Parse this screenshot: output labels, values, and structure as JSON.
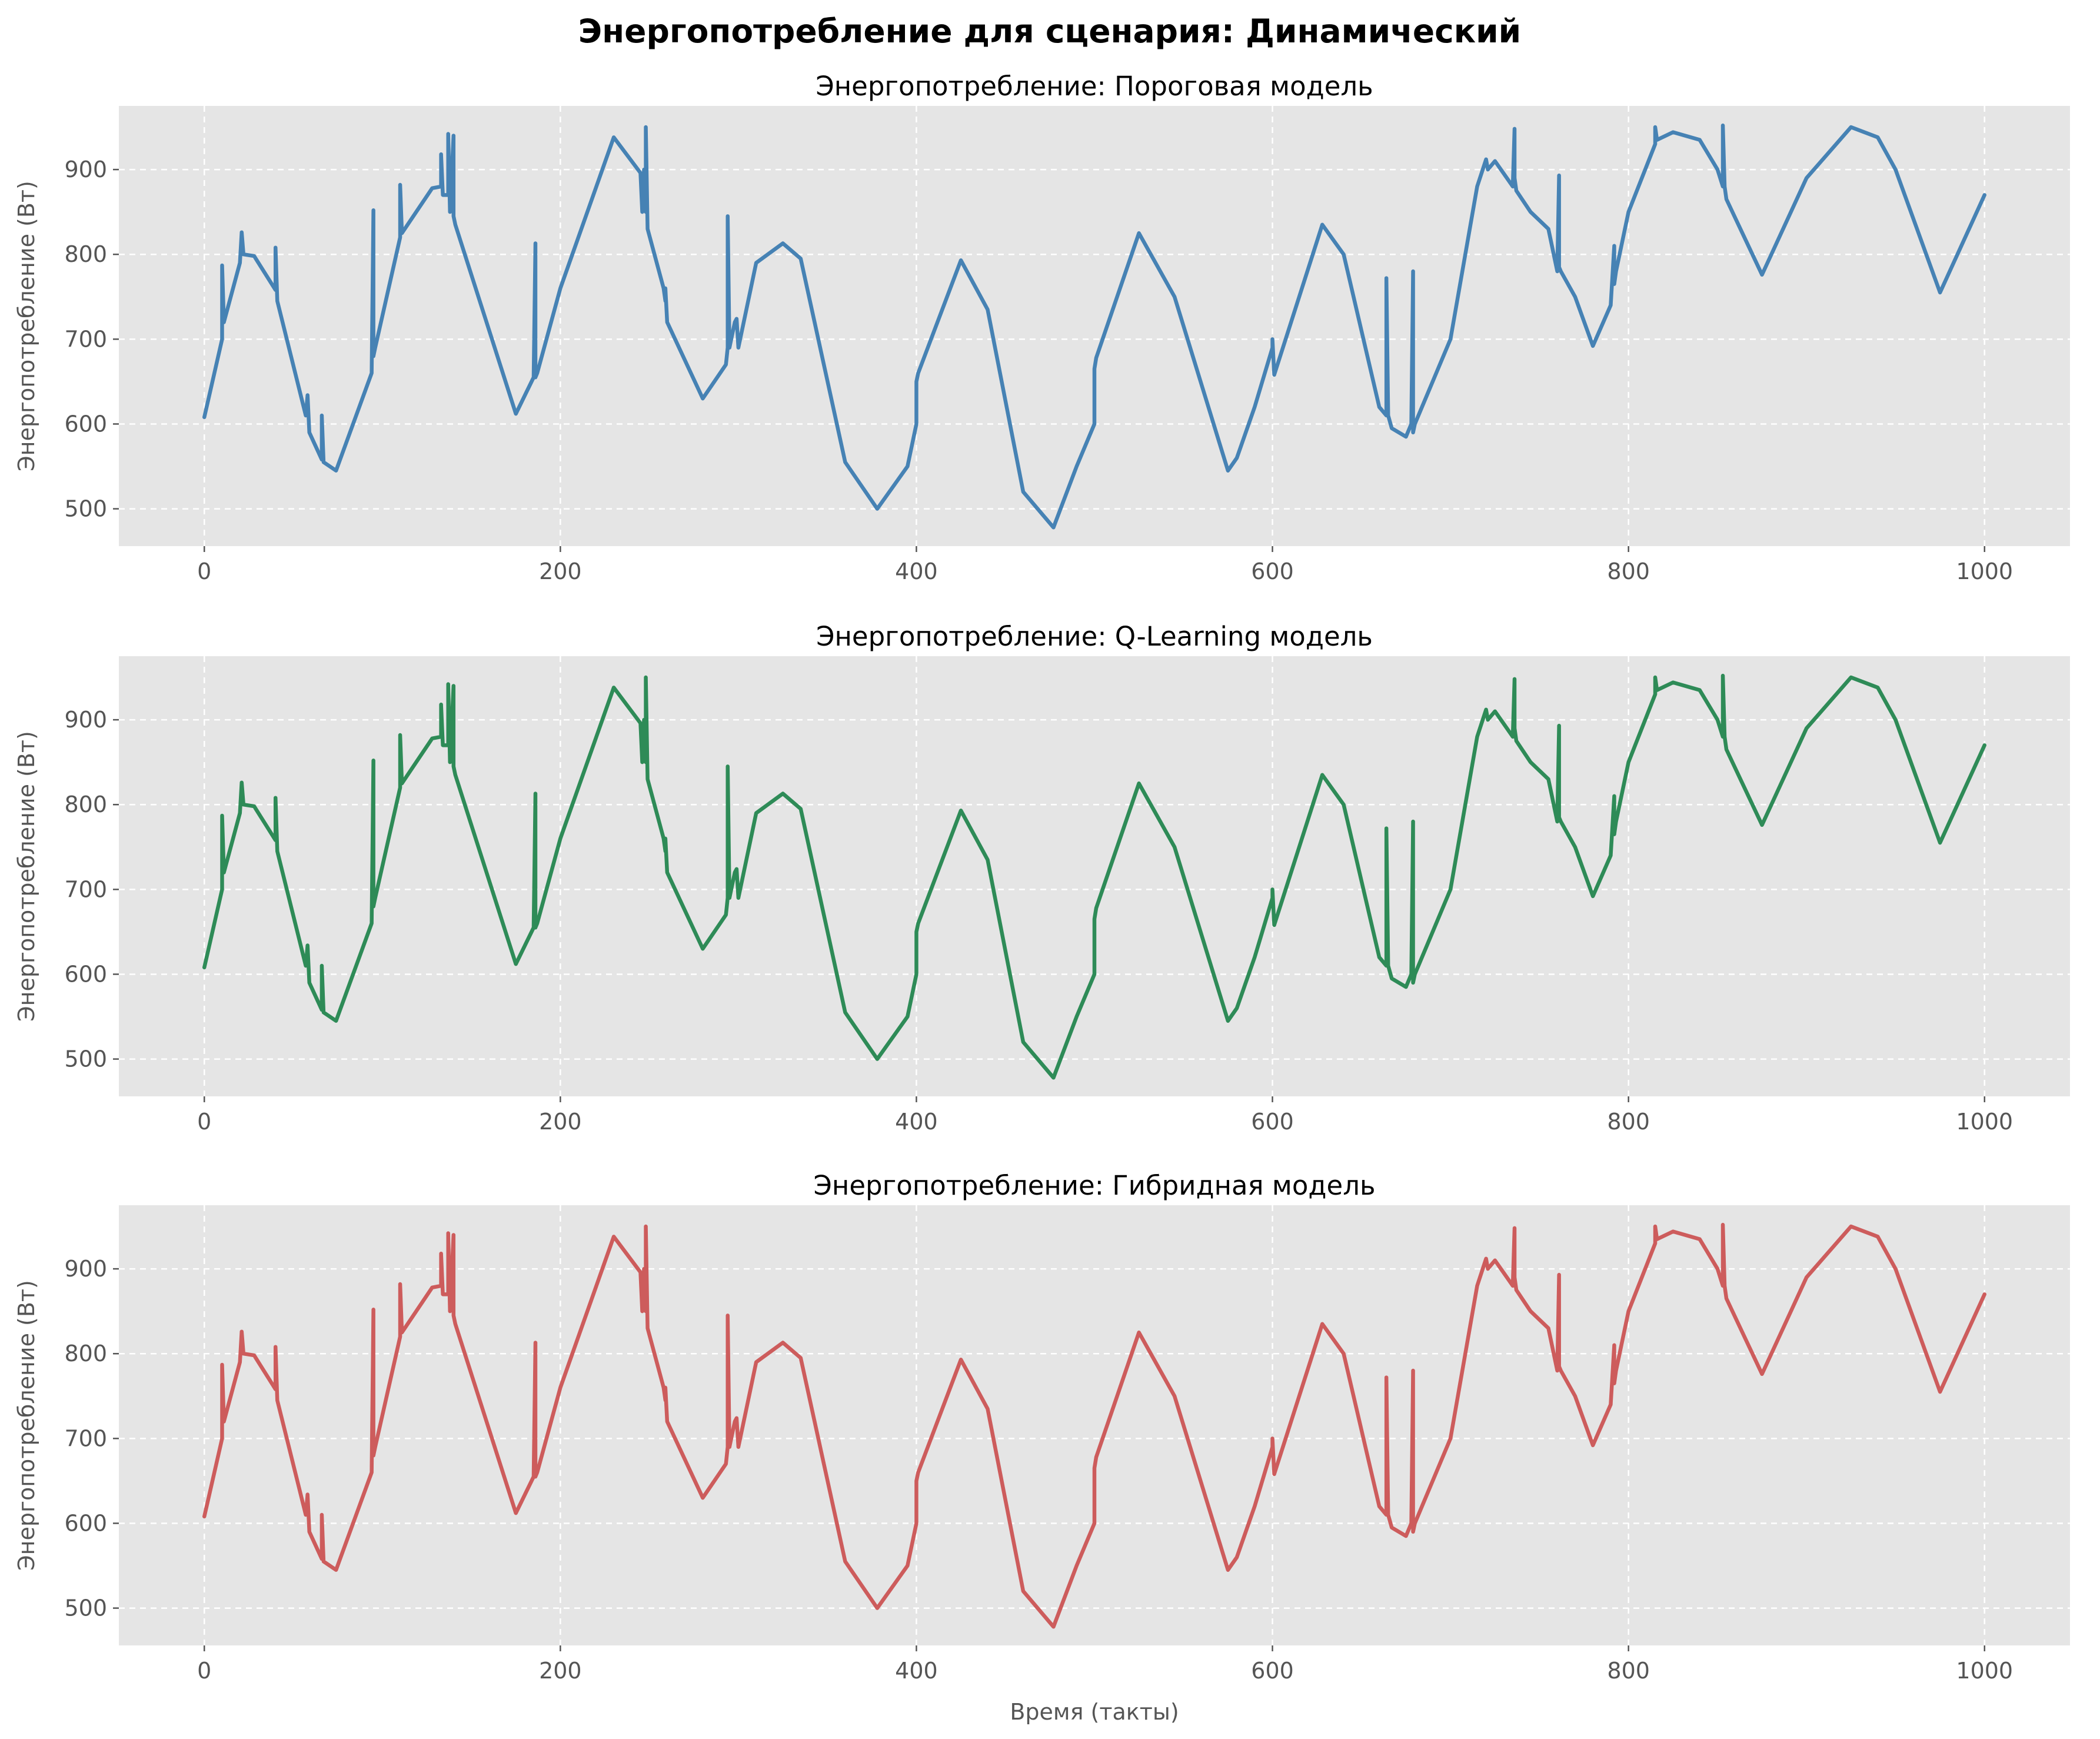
{
  "figure": {
    "title": "Энергопотребление для сценария: Динамический"
  },
  "chart_data": [
    {
      "type": "line",
      "title": "Энергопотребление: Пороговая модель",
      "xlabel": "",
      "ylabel": "Энергопотребление (Вт)",
      "xlim": [
        -48,
        1048
      ],
      "ylim": [
        456,
        975
      ],
      "xticks": [
        0,
        200,
        400,
        600,
        800,
        1000
      ],
      "yticks": [
        500,
        600,
        700,
        800,
        900
      ],
      "grid": true,
      "color": "#4682b4",
      "series": [
        {
          "x": [
            0,
            10,
            10,
            11,
            20,
            21,
            22,
            28,
            40,
            40,
            41,
            57,
            58,
            59,
            66,
            66,
            67,
            74,
            94,
            95,
            95,
            96,
            110,
            110,
            111,
            128,
            133,
            133,
            134,
            137,
            137,
            138,
            140,
            140,
            141,
            175,
            185,
            186,
            186,
            187,
            200,
            230,
            245,
            246,
            247,
            248,
            248,
            249,
            258,
            259,
            259,
            260,
            280,
            293,
            294,
            294,
            295,
            298,
            299,
            300,
            301,
            310,
            325,
            335,
            360,
            378,
            395,
            400,
            400,
            401,
            425,
            440,
            460,
            477,
            490,
            500,
            500,
            501,
            525,
            545,
            575,
            580,
            590,
            600,
            600,
            601,
            628,
            640,
            660,
            664,
            664,
            665,
            667,
            675,
            678,
            679,
            679,
            680,
            700,
            715,
            720,
            721,
            725,
            730,
            735,
            736,
            736,
            737,
            745,
            755,
            760,
            761,
            761,
            762,
            770,
            780,
            790,
            792,
            792,
            793,
            800,
            815,
            815,
            816,
            825,
            840,
            850,
            853,
            853,
            854,
            855,
            875,
            900,
            925,
            940,
            950,
            975,
            1000
          ],
          "y": [
            608,
            700,
            787,
            720,
            790,
            826,
            800,
            798,
            758,
            808,
            745,
            610,
            634,
            590,
            558,
            610,
            555,
            545,
            660,
            852,
            680,
            690,
            820,
            882,
            825,
            878,
            880,
            918,
            870,
            870,
            942,
            850,
            940,
            845,
            835,
            612,
            655,
            813,
            655,
            660,
            760,
            938,
            896,
            850,
            900,
            850,
            950,
            830,
            760,
            745,
            760,
            720,
            630,
            670,
            690,
            845,
            690,
            720,
            724,
            690,
            700,
            790,
            813,
            795,
            555,
            500,
            550,
            600,
            650,
            660,
            793,
            735,
            520,
            478,
            550,
            600,
            665,
            678,
            825,
            750,
            545,
            560,
            620,
            690,
            700,
            658,
            835,
            800,
            620,
            610,
            772,
            610,
            595,
            585,
            600,
            780,
            590,
            600,
            700,
            880,
            912,
            900,
            910,
            895,
            880,
            948,
            890,
            875,
            850,
            830,
            780,
            893,
            785,
            780,
            750,
            692,
            740,
            810,
            765,
            780,
            850,
            930,
            950,
            935,
            944,
            935,
            900,
            880,
            952,
            880,
            865,
            776,
            890,
            950,
            938,
            900,
            755,
            870
          ]
        }
      ]
    },
    {
      "type": "line",
      "title": "Энергопотребление: Q-Learning модель",
      "xlabel": "",
      "ylabel": "Энергопотребление (Вт)",
      "xlim": [
        -48,
        1048
      ],
      "ylim": [
        456,
        975
      ],
      "xticks": [
        0,
        200,
        400,
        600,
        800,
        1000
      ],
      "yticks": [
        500,
        600,
        700,
        800,
        900
      ],
      "grid": true,
      "color": "#2e8b57",
      "series": [
        {
          "x": [
            0,
            10,
            10,
            11,
            20,
            21,
            22,
            28,
            40,
            40,
            41,
            57,
            58,
            59,
            66,
            66,
            67,
            74,
            94,
            95,
            95,
            96,
            110,
            110,
            111,
            128,
            133,
            133,
            134,
            137,
            137,
            138,
            140,
            140,
            141,
            175,
            185,
            186,
            186,
            187,
            200,
            230,
            245,
            246,
            247,
            248,
            248,
            249,
            258,
            259,
            259,
            260,
            280,
            293,
            294,
            294,
            295,
            298,
            299,
            300,
            301,
            310,
            325,
            335,
            360,
            378,
            395,
            400,
            400,
            401,
            425,
            440,
            460,
            477,
            490,
            500,
            500,
            501,
            525,
            545,
            575,
            580,
            590,
            600,
            600,
            601,
            628,
            640,
            660,
            664,
            664,
            665,
            667,
            675,
            678,
            679,
            679,
            680,
            700,
            715,
            720,
            721,
            725,
            730,
            735,
            736,
            736,
            737,
            745,
            755,
            760,
            761,
            761,
            762,
            770,
            780,
            790,
            792,
            792,
            793,
            800,
            815,
            815,
            816,
            825,
            840,
            850,
            853,
            853,
            854,
            855,
            875,
            900,
            925,
            940,
            950,
            975,
            1000
          ],
          "y": [
            608,
            700,
            787,
            720,
            790,
            826,
            800,
            798,
            758,
            808,
            745,
            610,
            634,
            590,
            558,
            610,
            555,
            545,
            660,
            852,
            680,
            690,
            820,
            882,
            825,
            878,
            880,
            918,
            870,
            870,
            942,
            850,
            940,
            845,
            835,
            612,
            655,
            813,
            655,
            660,
            760,
            938,
            896,
            850,
            900,
            850,
            950,
            830,
            760,
            745,
            760,
            720,
            630,
            670,
            690,
            845,
            690,
            720,
            724,
            690,
            700,
            790,
            813,
            795,
            555,
            500,
            550,
            600,
            650,
            660,
            793,
            735,
            520,
            478,
            550,
            600,
            665,
            678,
            825,
            750,
            545,
            560,
            620,
            690,
            700,
            658,
            835,
            800,
            620,
            610,
            772,
            610,
            595,
            585,
            600,
            780,
            590,
            600,
            700,
            880,
            912,
            900,
            910,
            895,
            880,
            948,
            890,
            875,
            850,
            830,
            780,
            893,
            785,
            780,
            750,
            692,
            740,
            810,
            765,
            780,
            850,
            930,
            950,
            935,
            944,
            935,
            900,
            880,
            952,
            880,
            865,
            776,
            890,
            950,
            938,
            900,
            755,
            870
          ]
        }
      ]
    },
    {
      "type": "line",
      "title": "Энергопотребление: Гибридная модель",
      "xlabel": "Время (такты)",
      "ylabel": "Энергопотребление (Вт)",
      "xlim": [
        -48,
        1048
      ],
      "ylim": [
        456,
        975
      ],
      "xticks": [
        0,
        200,
        400,
        600,
        800,
        1000
      ],
      "yticks": [
        500,
        600,
        700,
        800,
        900
      ],
      "grid": true,
      "color": "#cd5c5c",
      "series": [
        {
          "x": [
            0,
            10,
            10,
            11,
            20,
            21,
            22,
            28,
            40,
            40,
            41,
            57,
            58,
            59,
            66,
            66,
            67,
            74,
            94,
            95,
            95,
            96,
            110,
            110,
            111,
            128,
            133,
            133,
            134,
            137,
            137,
            138,
            140,
            140,
            141,
            175,
            185,
            186,
            186,
            187,
            200,
            230,
            245,
            246,
            247,
            248,
            248,
            249,
            258,
            259,
            259,
            260,
            280,
            293,
            294,
            294,
            295,
            298,
            299,
            300,
            301,
            310,
            325,
            335,
            360,
            378,
            395,
            400,
            400,
            401,
            425,
            440,
            460,
            477,
            490,
            500,
            500,
            501,
            525,
            545,
            575,
            580,
            590,
            600,
            600,
            601,
            628,
            640,
            660,
            664,
            664,
            665,
            667,
            675,
            678,
            679,
            679,
            680,
            700,
            715,
            720,
            721,
            725,
            730,
            735,
            736,
            736,
            737,
            745,
            755,
            760,
            761,
            761,
            762,
            770,
            780,
            790,
            792,
            792,
            793,
            800,
            815,
            815,
            816,
            825,
            840,
            850,
            853,
            853,
            854,
            855,
            875,
            900,
            925,
            940,
            950,
            975,
            1000
          ],
          "y": [
            608,
            700,
            787,
            720,
            790,
            826,
            800,
            798,
            758,
            808,
            745,
            610,
            634,
            590,
            558,
            610,
            555,
            545,
            660,
            852,
            680,
            690,
            820,
            882,
            825,
            878,
            880,
            918,
            870,
            870,
            942,
            850,
            940,
            845,
            835,
            612,
            655,
            813,
            655,
            660,
            760,
            938,
            896,
            850,
            900,
            850,
            950,
            830,
            760,
            745,
            760,
            720,
            630,
            670,
            690,
            845,
            690,
            720,
            724,
            690,
            700,
            790,
            813,
            795,
            555,
            500,
            550,
            600,
            650,
            660,
            793,
            735,
            520,
            478,
            550,
            600,
            665,
            678,
            825,
            750,
            545,
            560,
            620,
            690,
            700,
            658,
            835,
            800,
            620,
            610,
            772,
            610,
            595,
            585,
            600,
            780,
            590,
            600,
            700,
            880,
            912,
            900,
            910,
            895,
            880,
            948,
            890,
            875,
            850,
            830,
            780,
            893,
            785,
            780,
            750,
            692,
            740,
            810,
            765,
            780,
            850,
            930,
            950,
            935,
            944,
            935,
            900,
            880,
            952,
            880,
            865,
            776,
            890,
            950,
            938,
            900,
            755,
            870
          ]
        }
      ]
    }
  ]
}
